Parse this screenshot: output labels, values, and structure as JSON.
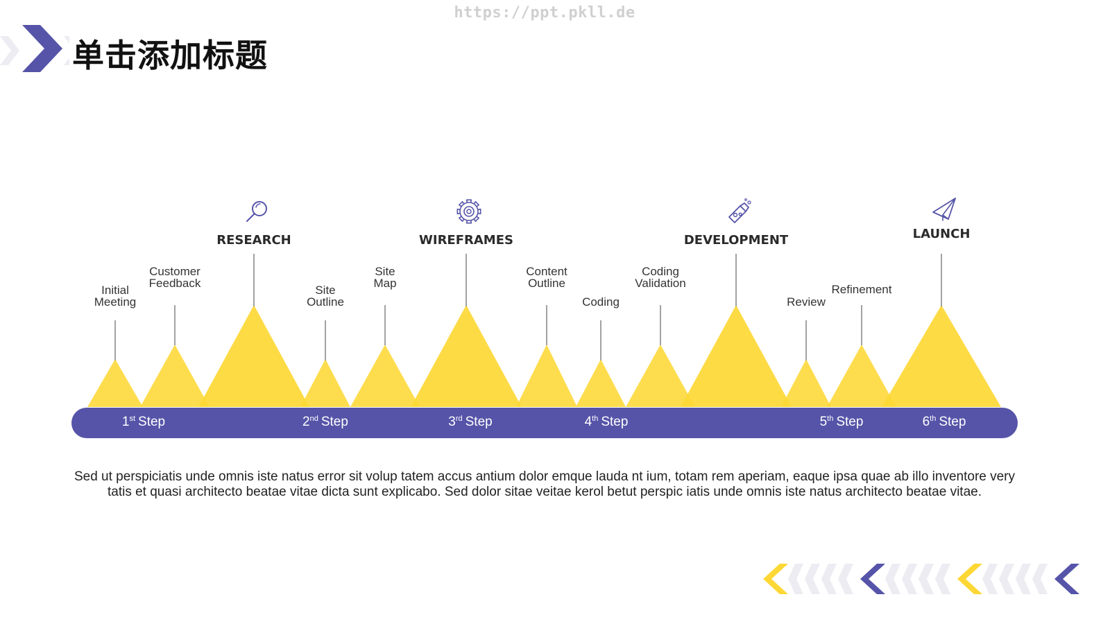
{
  "watermark": "https://ppt.pkll.de",
  "title": "单击添加标题",
  "colors": {
    "yellow": "#FDD835",
    "purple": "#5654A8",
    "light_chevron": "#ECECF2",
    "stem": "#444444"
  },
  "phases": [
    {
      "label": "RESEARCH",
      "icon": "magnifier-icon"
    },
    {
      "label": "WIREFRAMES",
      "icon": "gear-icon"
    },
    {
      "label": "DEVELOPMENT",
      "icon": "rocket-icon"
    },
    {
      "label": "LAUNCH",
      "icon": "paper-plane-icon"
    }
  ],
  "tasks": [
    [
      "Initial",
      "Meeting"
    ],
    [
      "Customer",
      "Feedback"
    ],
    [
      "Site",
      "Outline"
    ],
    [
      "Site",
      "Map"
    ],
    [
      "Content",
      "Outline"
    ],
    [
      "Coding"
    ],
    [
      "Coding",
      "Validation"
    ],
    [
      "Review"
    ],
    [
      "Refinement"
    ]
  ],
  "steps": [
    {
      "num": "1",
      "sup": "st",
      "word": "Step"
    },
    {
      "num": "2",
      "sup": "nd",
      "word": "Step"
    },
    {
      "num": "3",
      "sup": "rd",
      "word": "Step"
    },
    {
      "num": "4",
      "sup": "th",
      "word": "Step"
    },
    {
      "num": "5",
      "sup": "th",
      "word": "Step"
    },
    {
      "num": "6",
      "sup": "th",
      "word": "Step"
    }
  ],
  "description": "Sed ut perspiciatis unde omnis iste natus error sit volup tatem accus antium dolor emque lauda nt ium, totam rem aperiam, eaque ipsa quae ab illo inventore very tatis et quasi architecto beatae vitae dicta sunt explicabo.  Sed dolor sitae veitae kerol betut perspic iatis unde omnis iste natus architecto beatae vitae."
}
